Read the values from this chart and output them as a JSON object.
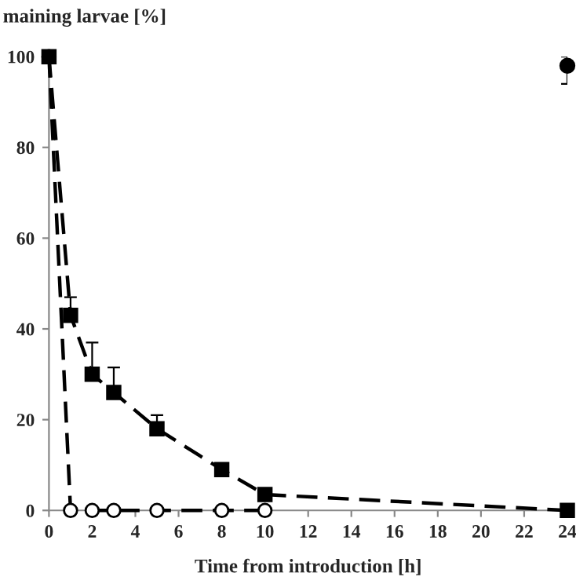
{
  "chart_data": {
    "type": "line",
    "ylabel": "maining larvae [%]",
    "xlabel": "Time from introduction [h]",
    "xlim": [
      0,
      24
    ],
    "xticks": [
      0,
      2,
      4,
      6,
      8,
      10,
      12,
      14,
      16,
      18,
      20,
      22,
      24
    ],
    "ylim": [
      0,
      100
    ],
    "yticks": [
      0,
      20,
      40,
      60,
      80,
      100
    ],
    "grid": false,
    "legend": false,
    "series": [
      {
        "color": "#ffffff",
        "marker": "circle",
        "line_style": "dashed",
        "x": [
          0,
          1,
          2,
          3,
          5,
          8,
          10
        ],
        "values": [
          100,
          0,
          0,
          0,
          0,
          0,
          0
        ]
      },
      {
        "color": "#000000",
        "marker": "square",
        "line_style": "dashed",
        "x": [
          0,
          1,
          2,
          3,
          5,
          8,
          10,
          24
        ],
        "values": [
          100,
          43,
          30,
          26,
          18,
          9,
          3.5,
          0
        ],
        "errors": [
          null,
          [
            43,
            47
          ],
          [
            30,
            37
          ],
          [
            26,
            31.5
          ],
          [
            18,
            21
          ],
          null,
          null,
          null
        ]
      },
      {
        "type": "scatter",
        "color": "#000000",
        "marker": "circle",
        "x": [
          24
        ],
        "values": [
          98
        ],
        "errors": [
          [
            94,
            100
          ]
        ]
      }
    ]
  }
}
